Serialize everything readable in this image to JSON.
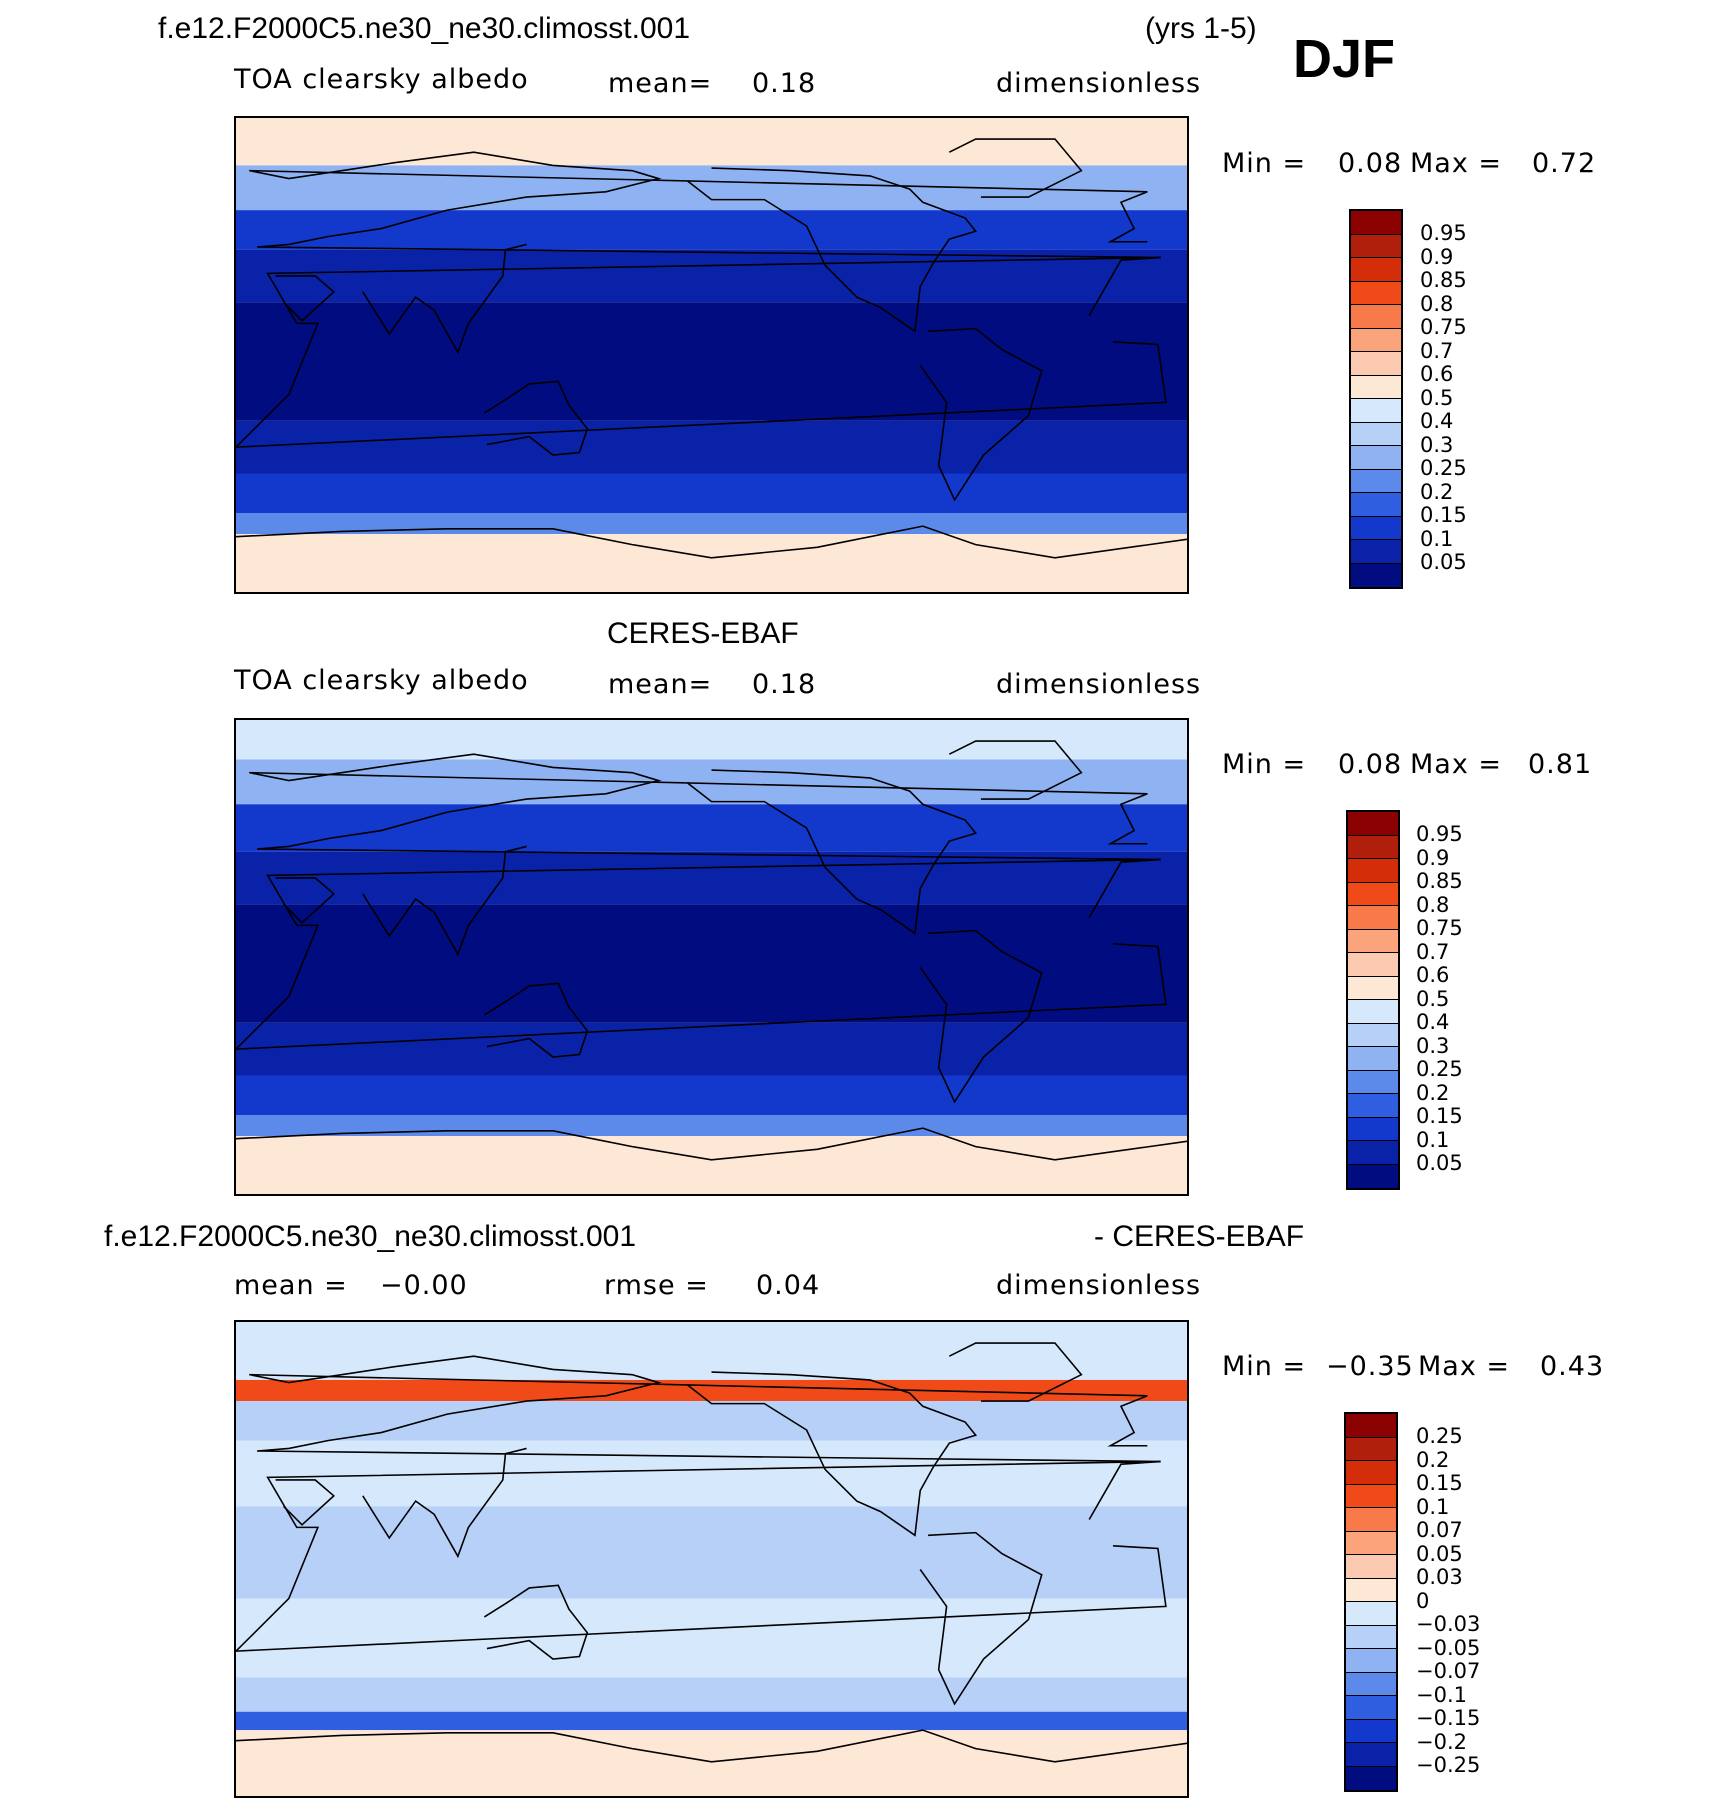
{
  "header": {
    "case_name": "f.e12.F2000C5.ne30_ne30.climosst.001",
    "years": "(yrs 1-5)",
    "season": "DJF"
  },
  "panels": [
    {
      "id": "model",
      "title": "",
      "variable": "TOA clearsky albedo",
      "stat_label": "mean=",
      "stat_value": "0.18",
      "units": "dimensionless",
      "min_label": "Min =",
      "min_value": "0.08",
      "max_label": "Max =",
      "max_value": "0.72"
    },
    {
      "id": "obs",
      "title": "CERES-EBAF",
      "variable": "TOA clearsky albedo",
      "stat_label": "mean=",
      "stat_value": "0.18",
      "units": "dimensionless",
      "min_label": "Min =",
      "min_value": "0.08",
      "max_label": "Max =",
      "max_value": "0.81"
    },
    {
      "id": "diff",
      "title_left": "f.e12.F2000C5.ne30_ne30.climosst.001",
      "title_right": "- CERES-EBAF",
      "stat_label": "mean =",
      "stat_value": "−0.00",
      "rmse_label": "rmse =",
      "rmse_value": "0.04",
      "units": "dimensionless",
      "min_label": "Min =",
      "min_value": "−0.35",
      "max_label": "Max =",
      "max_value": "0.43"
    }
  ],
  "chart_data": [
    {
      "type": "heatmap",
      "title": "TOA clearsky albedo",
      "units": "dimensionless",
      "mean": 0.18,
      "min": 0.08,
      "max": 0.72,
      "colorbar_levels": [
        "0.95",
        "0.9",
        "0.85",
        "0.8",
        "0.75",
        "0.7",
        "0.6",
        "0.5",
        "0.4",
        "0.3",
        "0.25",
        "0.2",
        "0.15",
        "0.1",
        "0.05"
      ],
      "colorbar_colors": [
        "#8b0000",
        "#b01e0c",
        "#d42d0a",
        "#f04a18",
        "#f87a4a",
        "#fba47c",
        "#fccab0",
        "#fde8d6",
        "#d6e8fc",
        "#b7d0f8",
        "#8fb2f3",
        "#5b8aeb",
        "#2f5fe0",
        "#1238cc",
        "#0a22a8",
        "#000c80"
      ],
      "zonal_bands": [
        {
          "lat_from": 72,
          "lat_to": 90,
          "level": "0.6"
        },
        {
          "lat_from": 55,
          "lat_to": 72,
          "level": "0.3"
        },
        {
          "lat_from": 40,
          "lat_to": 55,
          "level": "0.15"
        },
        {
          "lat_from": 20,
          "lat_to": 40,
          "level": "0.1"
        },
        {
          "lat_from": -25,
          "lat_to": 20,
          "level": "0.05"
        },
        {
          "lat_from": -45,
          "lat_to": -25,
          "level": "0.1"
        },
        {
          "lat_from": -60,
          "lat_to": -45,
          "level": "0.15"
        },
        {
          "lat_from": -68,
          "lat_to": -60,
          "level": "0.25"
        },
        {
          "lat_from": -90,
          "lat_to": -68,
          "level": "0.6"
        }
      ]
    },
    {
      "type": "heatmap",
      "title": "TOA clearsky albedo",
      "units": "dimensionless",
      "mean": 0.18,
      "min": 0.08,
      "max": 0.81,
      "colorbar_levels": [
        "0.95",
        "0.9",
        "0.85",
        "0.8",
        "0.75",
        "0.7",
        "0.6",
        "0.5",
        "0.4",
        "0.3",
        "0.25",
        "0.2",
        "0.15",
        "0.1",
        "0.05"
      ],
      "colorbar_colors": [
        "#8b0000",
        "#b01e0c",
        "#d42d0a",
        "#f04a18",
        "#f87a4a",
        "#fba47c",
        "#fccab0",
        "#fde8d6",
        "#d6e8fc",
        "#b7d0f8",
        "#8fb2f3",
        "#5b8aeb",
        "#2f5fe0",
        "#1238cc",
        "#0a22a8",
        "#000c80"
      ],
      "zonal_bands": [
        {
          "lat_from": 75,
          "lat_to": 90,
          "level": "0.5"
        },
        {
          "lat_from": 58,
          "lat_to": 75,
          "level": "0.3"
        },
        {
          "lat_from": 40,
          "lat_to": 58,
          "level": "0.15"
        },
        {
          "lat_from": 20,
          "lat_to": 40,
          "level": "0.1"
        },
        {
          "lat_from": -25,
          "lat_to": 20,
          "level": "0.05"
        },
        {
          "lat_from": -45,
          "lat_to": -25,
          "level": "0.1"
        },
        {
          "lat_from": -60,
          "lat_to": -45,
          "level": "0.15"
        },
        {
          "lat_from": -68,
          "lat_to": -60,
          "level": "0.25"
        },
        {
          "lat_from": -90,
          "lat_to": -68,
          "level": "0.6"
        }
      ]
    },
    {
      "type": "heatmap",
      "title": "- CERES-EBAF",
      "units": "dimensionless",
      "mean": -0.0,
      "rmse": 0.04,
      "min": -0.35,
      "max": 0.43,
      "colorbar_levels": [
        "0.25",
        "0.2",
        "0.15",
        "0.1",
        "0.07",
        "0.05",
        "0.03",
        "0",
        "−0.03",
        "−0.05",
        "−0.07",
        "−0.1",
        "−0.15",
        "−0.2",
        "−0.25"
      ],
      "colorbar_colors": [
        "#8b0000",
        "#b01e0c",
        "#d42d0a",
        "#f04a18",
        "#f87a4a",
        "#fba47c",
        "#fccab0",
        "#fde8d6",
        "#d6e8fc",
        "#b7d0f8",
        "#8fb2f3",
        "#5b8aeb",
        "#2f5fe0",
        "#1238cc",
        "#0a22a8",
        "#000c80"
      ],
      "zonal_bands": [
        {
          "lat_from": 68,
          "lat_to": 90,
          "level": "0"
        },
        {
          "lat_from": 60,
          "lat_to": 68,
          "level": "0.15"
        },
        {
          "lat_from": 45,
          "lat_to": 60,
          "level": "−0.03"
        },
        {
          "lat_from": 20,
          "lat_to": 45,
          "level": "0"
        },
        {
          "lat_from": -15,
          "lat_to": 20,
          "level": "−0.03"
        },
        {
          "lat_from": -45,
          "lat_to": -15,
          "level": "0"
        },
        {
          "lat_from": -58,
          "lat_to": -45,
          "level": "−0.03"
        },
        {
          "lat_from": -65,
          "lat_to": -58,
          "level": "−0.1"
        },
        {
          "lat_from": -90,
          "lat_to": -65,
          "level": "0.03"
        }
      ]
    }
  ]
}
